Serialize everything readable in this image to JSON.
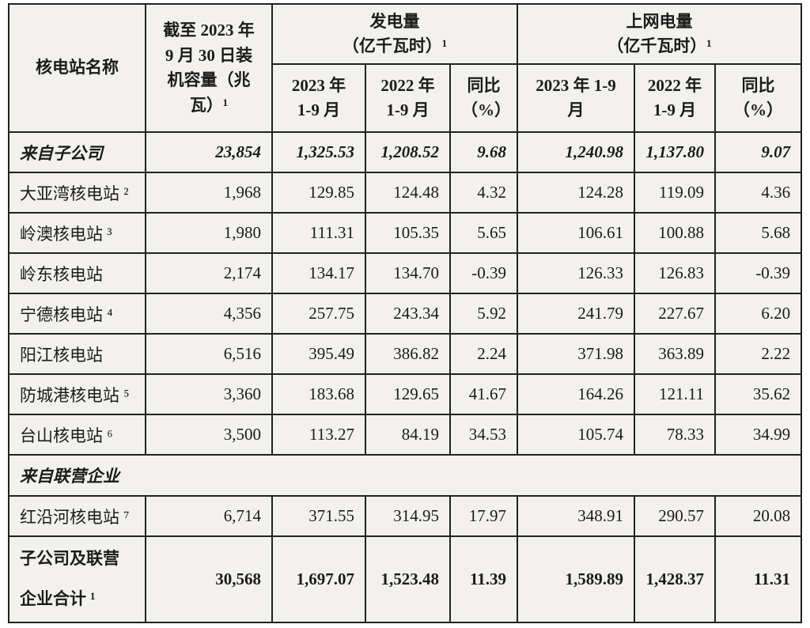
{
  "colors": {
    "cell_background": "#f2f1ee",
    "border": "#222222",
    "text": "#1b1b1b",
    "page_background": "#ffffff"
  },
  "table": {
    "name_header": "核电站名称",
    "capacity_header": "截至 2023 年\n9 月 30 日装\n机容量（兆\n瓦）¹",
    "generation_group_header": "发电量\n（亿千瓦时）¹",
    "ongrid_group_header": "上网电量\n（亿千瓦时）¹",
    "sub_headers": [
      "2023 年\n1-9 月",
      "2022 年\n1-9 月",
      "同比\n（%）",
      "2023 年 1-9\n月",
      "2022 年\n1-9 月",
      "同比\n（%）"
    ],
    "rows": [
      {
        "type": "summary",
        "name": "来自子公司",
        "values": [
          "23,854",
          "1,325.53",
          "1,208.52",
          "9.68",
          "1,240.98",
          "1,137.80",
          "9.07"
        ]
      },
      {
        "type": "data",
        "name": "大亚湾核电站 ²",
        "values": [
          "1,968",
          "129.85",
          "124.48",
          "4.32",
          "124.28",
          "119.09",
          "4.36"
        ]
      },
      {
        "type": "data",
        "name": "岭澳核电站 ³",
        "values": [
          "1,980",
          "111.31",
          "105.35",
          "5.65",
          "106.61",
          "100.88",
          "5.68"
        ]
      },
      {
        "type": "data",
        "name": "岭东核电站",
        "values": [
          "2,174",
          "134.17",
          "134.70",
          "-0.39",
          "126.33",
          "126.83",
          "-0.39"
        ]
      },
      {
        "type": "data",
        "name": "宁德核电站 ⁴",
        "values": [
          "4,356",
          "257.75",
          "243.34",
          "5.92",
          "241.79",
          "227.67",
          "6.20"
        ]
      },
      {
        "type": "data",
        "name": "阳江核电站",
        "values": [
          "6,516",
          "395.49",
          "386.82",
          "2.24",
          "371.98",
          "363.89",
          "2.22"
        ]
      },
      {
        "type": "data",
        "name": "防城港核电站 ⁵",
        "values": [
          "3,360",
          "183.68",
          "129.65",
          "41.67",
          "164.26",
          "121.11",
          "35.62"
        ]
      },
      {
        "type": "data",
        "name": "台山核电站 ⁶",
        "values": [
          "3,500",
          "113.27",
          "84.19",
          "34.53",
          "105.74",
          "78.33",
          "34.99"
        ]
      },
      {
        "type": "section",
        "name": "来自联营企业",
        "values": []
      },
      {
        "type": "data",
        "name": "红沿河核电站 ⁷",
        "values": [
          "6,714",
          "371.55",
          "314.95",
          "17.97",
          "348.91",
          "290.57",
          "20.08"
        ]
      },
      {
        "type": "total",
        "name": "子公司及联营\n企业合计 ¹",
        "values": [
          "30,568",
          "1,697.07",
          "1,523.48",
          "11.39",
          "1,589.89",
          "1,428.37",
          "11.31"
        ]
      }
    ]
  }
}
